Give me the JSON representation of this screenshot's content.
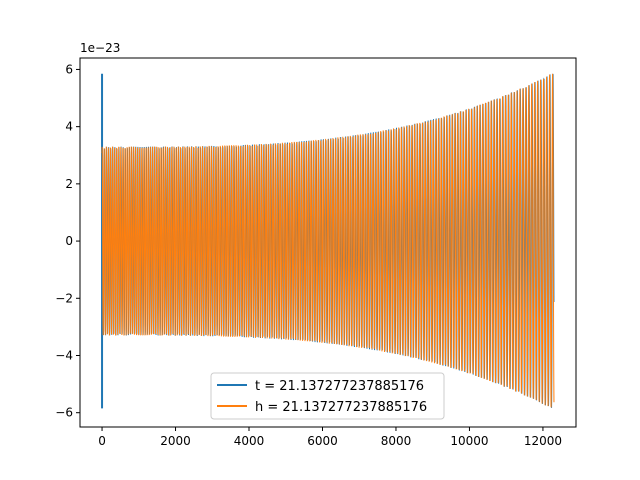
{
  "chart_data": {
    "type": "line",
    "title": "",
    "xlabel": "",
    "ylabel": "",
    "y_offset_label": "1e−23",
    "xlim": [
      -600,
      12900
    ],
    "ylim": [
      -6.5,
      6.4
    ],
    "x_ticks": [
      0,
      2000,
      4000,
      6000,
      8000,
      10000,
      12000
    ],
    "x_tick_labels": [
      "0",
      "2000",
      "4000",
      "6000",
      "8000",
      "10000",
      "12000"
    ],
    "y_ticks": [
      -6,
      -4,
      -2,
      0,
      2,
      4,
      6
    ],
    "y_tick_labels": [
      "−6",
      "−4",
      "−2",
      "0",
      "2",
      "4",
      "6"
    ],
    "grid": false,
    "legend_position": "lower center",
    "series": [
      {
        "name": "t = 21.137277237885176",
        "color": "#1f77b4",
        "shape": "oscillating chirp waveform, initial spike to ±5.9 at x≈0, then amplitude ~3.3 growing to ~5.9",
        "x_end": 12300,
        "initial_spike": 5.85,
        "amplitude_start": 3.3,
        "amplitude_end": 5.9
      },
      {
        "name": "h = 21.137277237885176",
        "color": "#ff7f0e",
        "shape": "oscillating chirp waveform, amplitude ~3.3 at x=0 growing to ~5.9 at x≈12300",
        "x_end": 12300,
        "amplitude_start": 3.3,
        "amplitude_end": 5.9
      }
    ]
  }
}
